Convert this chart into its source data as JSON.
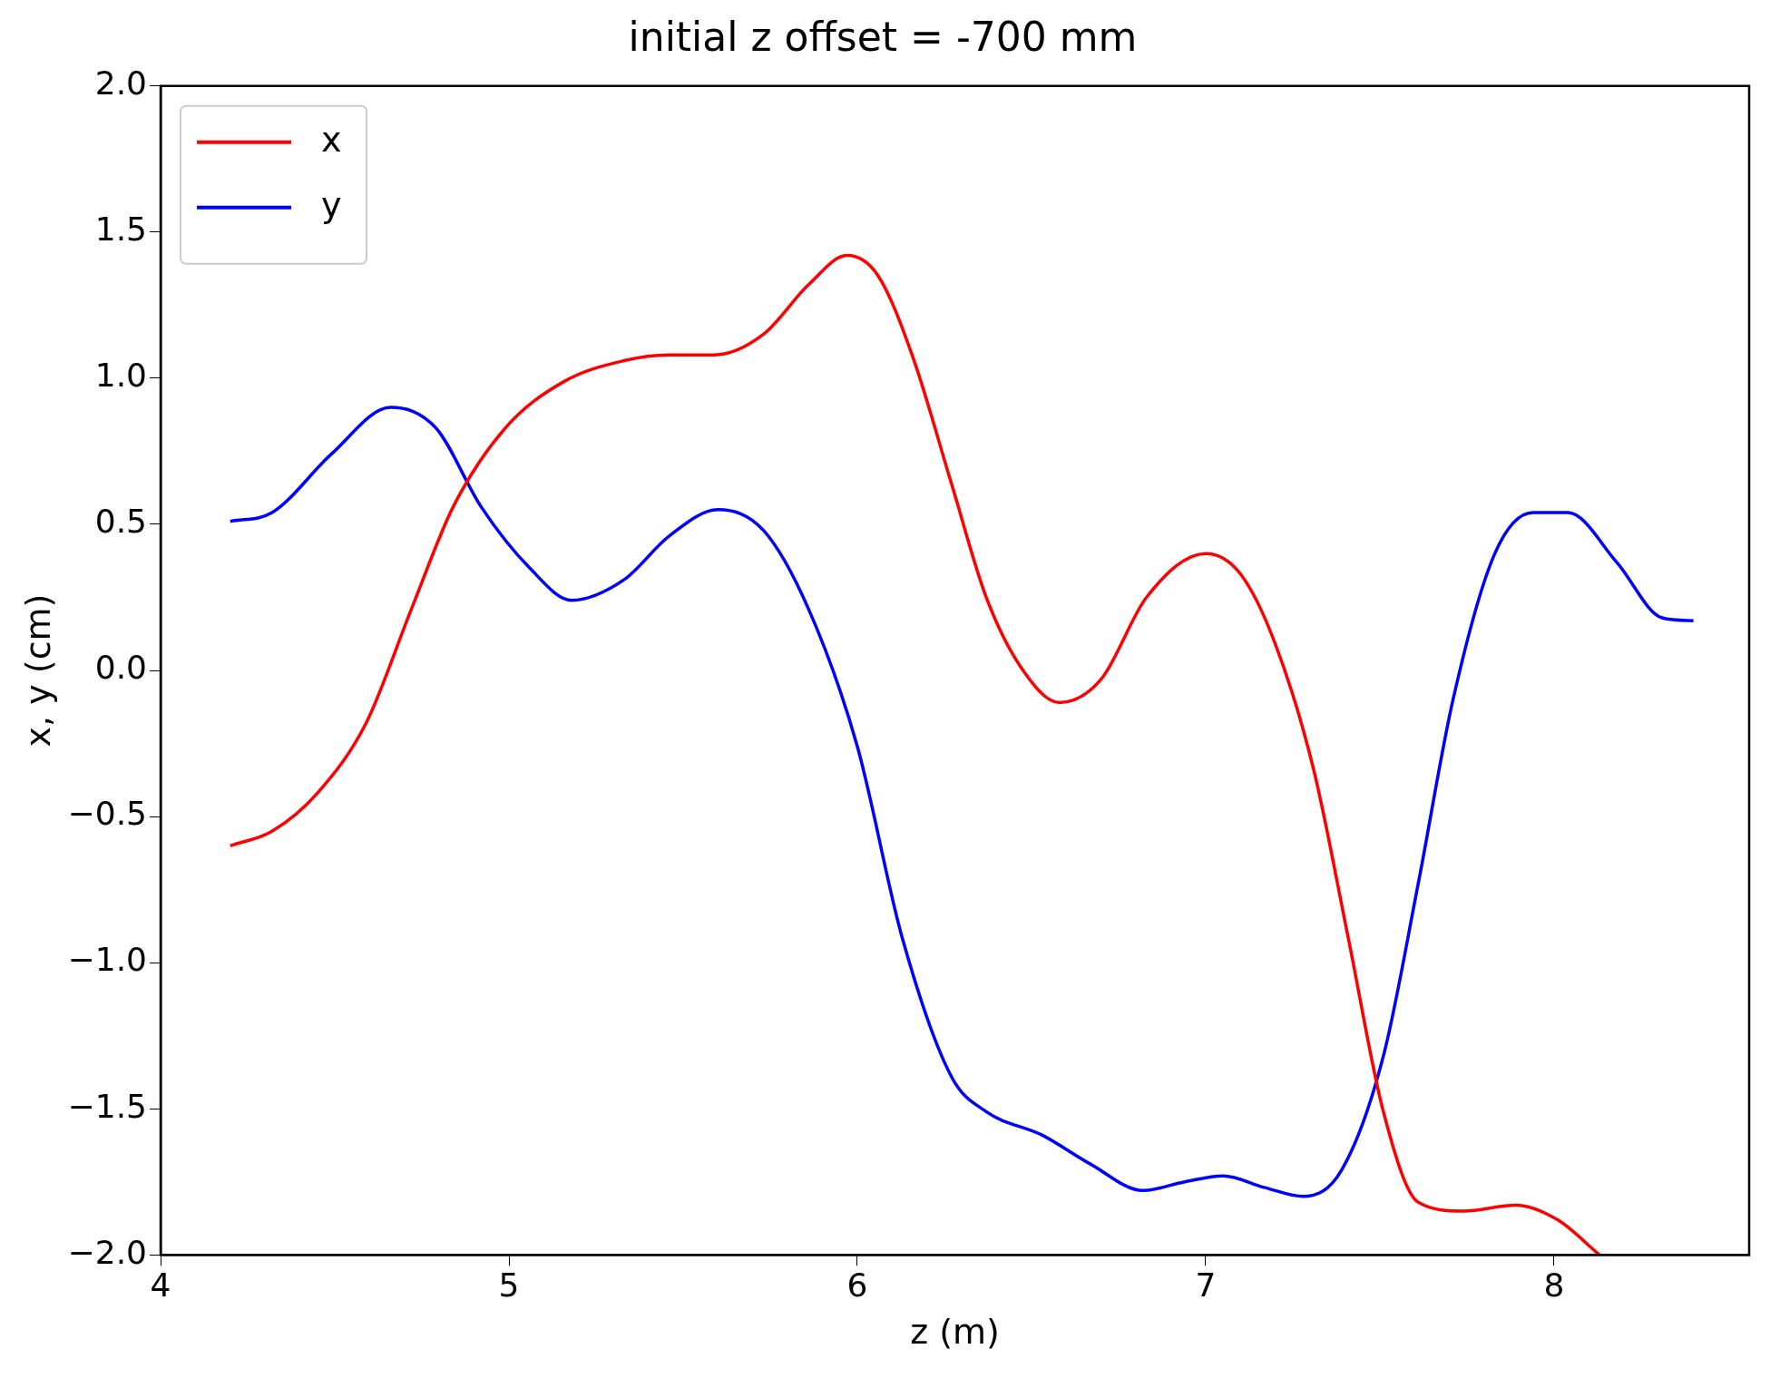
{
  "chart_data": {
    "type": "line",
    "title": "initial z offset = -700 mm",
    "xlabel": "z (m)",
    "ylabel": "x, y (cm)",
    "xlim": [
      4,
      8.56
    ],
    "xticks": [
      4,
      5,
      6,
      7,
      8
    ],
    "ylim": [
      -2,
      2
    ],
    "yticks": [
      {
        "value": -2,
        "label": "−2.0"
      },
      {
        "value": -1.5,
        "label": "−1.5"
      },
      {
        "value": -1,
        "label": "−1.0"
      },
      {
        "value": -0.5,
        "label": "−0.5"
      },
      {
        "value": 0,
        "label": "0.0"
      },
      {
        "value": 0.5,
        "label": "0.5"
      },
      {
        "value": 1,
        "label": "1.0"
      },
      {
        "value": 1.5,
        "label": "1.5"
      },
      {
        "value": 2,
        "label": "2.0"
      }
    ],
    "grid": false,
    "legend": "top left",
    "marker": "none",
    "line_style": "solid",
    "series": [
      {
        "name": "x",
        "color": "#ff0000",
        "x": [
          4.2,
          4.32,
          4.45,
          4.59,
          4.72,
          4.84,
          4.99,
          5.16,
          5.33,
          5.46,
          5.59,
          5.73,
          5.86,
          5.97,
          6.06,
          6.16,
          6.27,
          6.37,
          6.47,
          6.58,
          6.7,
          6.83,
          7.0,
          7.1,
          7.2,
          7.31,
          7.41,
          7.51,
          7.61,
          7.74,
          7.89,
          8.01,
          8.13
        ],
        "values": [
          -0.6,
          -0.55,
          -0.42,
          -0.18,
          0.21,
          0.56,
          0.83,
          0.99,
          1.06,
          1.08,
          1.08,
          1.15,
          1.32,
          1.42,
          1.35,
          1.07,
          0.64,
          0.25,
          0.01,
          -0.11,
          -0.03,
          0.25,
          0.4,
          0.33,
          0.09,
          -0.34,
          -0.92,
          -1.51,
          -1.82,
          -1.85,
          -1.83,
          -1.88,
          -2.0
        ]
      },
      {
        "name": "y",
        "color": "#0000ff",
        "x": [
          4.2,
          4.32,
          4.49,
          4.66,
          4.79,
          4.92,
          5.06,
          5.18,
          5.33,
          5.46,
          5.6,
          5.73,
          5.86,
          6.0,
          6.13,
          6.27,
          6.37,
          6.53,
          6.67,
          6.82,
          6.94,
          7.05,
          7.17,
          7.28,
          7.39,
          7.51,
          7.61,
          7.71,
          7.83,
          7.94,
          8.04,
          8.18,
          8.31,
          8.4
        ],
        "values": [
          0.51,
          0.54,
          0.74,
          0.9,
          0.83,
          0.56,
          0.35,
          0.24,
          0.31,
          0.46,
          0.55,
          0.48,
          0.21,
          -0.26,
          -0.92,
          -1.39,
          -1.51,
          -1.59,
          -1.69,
          -1.78,
          -1.75,
          -1.73,
          -1.77,
          -1.8,
          -1.71,
          -1.32,
          -0.73,
          -0.1,
          0.4,
          0.54,
          0.54,
          0.37,
          0.18,
          0.17
        ]
      }
    ]
  }
}
